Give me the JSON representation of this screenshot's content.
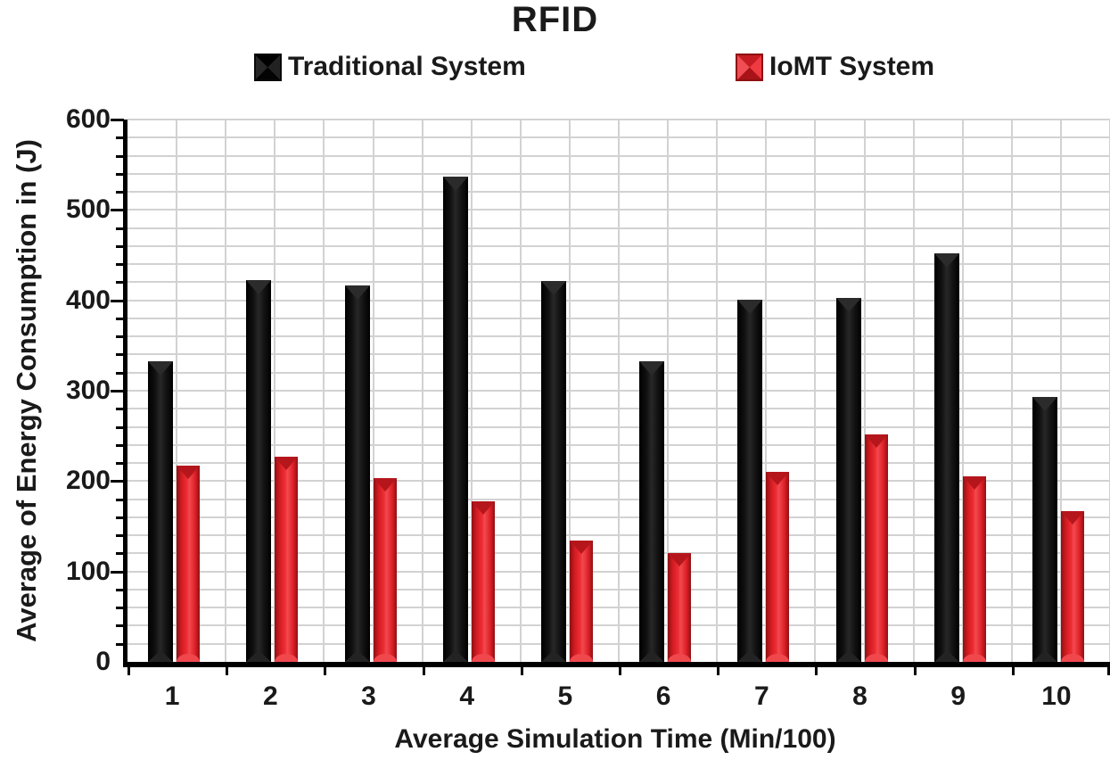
{
  "title": "RFID",
  "legend": {
    "traditional_label": "Traditional System",
    "iomt_label": "IoMT System"
  },
  "colors": {
    "traditional": "#111111",
    "iomt": "#e2232a",
    "gridline": "#d2d2d2",
    "axis": "#000000",
    "text": "#1a1a1a"
  },
  "chart_data": {
    "type": "bar",
    "title": "RFID",
    "categories": [
      "1",
      "2",
      "3",
      "4",
      "5",
      "6",
      "7",
      "8",
      "9",
      "10"
    ],
    "series": [
      {
        "name": "Traditional System",
        "color": "#111111",
        "values": [
          333,
          422,
          416,
          537,
          421,
          333,
          401,
          403,
          452,
          293
        ]
      },
      {
        "name": "IoMT System",
        "color": "#e2232a",
        "values": [
          217,
          227,
          203,
          178,
          134,
          120,
          210,
          252,
          205,
          167
        ]
      }
    ],
    "xlabel": "Average Simulation Time (Min/100)",
    "ylabel": "Average of Energy Consumption in (J)",
    "ylim": [
      0,
      600
    ],
    "ytick_major": 100,
    "ytick_minor": 20,
    "grid": true,
    "legend_position": "top"
  }
}
